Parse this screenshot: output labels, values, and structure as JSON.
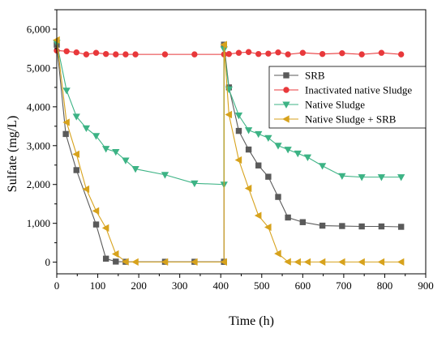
{
  "chart_data": {
    "type": "line",
    "xlabel": "Time (h)",
    "ylabel": "Sulfate (mg/L)",
    "xlim": [
      0,
      900
    ],
    "ylim": [
      -300,
      6500
    ],
    "xticks": [
      0,
      100,
      200,
      300,
      400,
      500,
      600,
      700,
      800,
      900
    ],
    "yticks": [
      0,
      1000,
      2000,
      3000,
      4000,
      5000,
      6000
    ],
    "xtick_labels": [
      "0",
      "100",
      "200",
      "300",
      "400",
      "500",
      "600",
      "700",
      "800",
      "900"
    ],
    "ytick_labels": [
      "0",
      "1,000",
      "2,000",
      "3,000",
      "4,000",
      "5,000",
      "6,000"
    ],
    "legend_position": "top-right",
    "series": [
      {
        "name": "SRB",
        "color": "#5a5a5a",
        "marker": "square",
        "x": [
          0,
          22,
          48,
          96,
          120,
          144,
          168,
          264,
          336,
          408,
          408,
          408,
          420,
          444,
          468,
          492,
          516,
          540,
          564,
          600,
          648,
          696,
          744,
          792,
          840
        ],
        "y": [
          5600,
          3300,
          2370,
          970,
          90,
          15,
          10,
          10,
          10,
          10,
          10,
          5600,
          4500,
          3380,
          2900,
          2490,
          2200,
          1680,
          1150,
          1030,
          940,
          930,
          920,
          920,
          910
        ]
      },
      {
        "name": "Inactivated native Sludge",
        "color": "#e8383b",
        "marker": "circle",
        "x": [
          0,
          24,
          48,
          72,
          96,
          120,
          144,
          168,
          192,
          264,
          336,
          408,
          420,
          444,
          468,
          492,
          516,
          540,
          564,
          600,
          648,
          696,
          744,
          792,
          840
        ],
        "y": [
          5450,
          5430,
          5400,
          5350,
          5390,
          5360,
          5350,
          5350,
          5350,
          5350,
          5350,
          5350,
          5360,
          5390,
          5410,
          5360,
          5370,
          5400,
          5350,
          5390,
          5360,
          5380,
          5350,
          5390,
          5350
        ]
      },
      {
        "name": "Native Sludge",
        "color": "#3db385",
        "marker": "triangle-down",
        "x": [
          0,
          24,
          48,
          72,
          96,
          120,
          144,
          168,
          192,
          264,
          336,
          408,
          408,
          420,
          444,
          468,
          492,
          516,
          540,
          564,
          588,
          612,
          648,
          696,
          744,
          792,
          840
        ],
        "y": [
          5650,
          4420,
          3750,
          3450,
          3250,
          2920,
          2840,
          2620,
          2400,
          2250,
          2030,
          2000,
          5480,
          4450,
          3780,
          3400,
          3300,
          3200,
          3000,
          2900,
          2800,
          2700,
          2480,
          2220,
          2190,
          2190,
          2190
        ]
      },
      {
        "name": "Native Sludge + SRB",
        "color": "#d7a21c",
        "marker": "triangle-left",
        "x": [
          0,
          24,
          48,
          72,
          96,
          120,
          144,
          168,
          192,
          264,
          336,
          408,
          408,
          420,
          444,
          468,
          492,
          516,
          540,
          564,
          588,
          612,
          648,
          696,
          744,
          792,
          840
        ],
        "y": [
          5720,
          3600,
          2780,
          1880,
          1320,
          880,
          210,
          10,
          5,
          5,
          5,
          5,
          5600,
          3800,
          2630,
          1900,
          1200,
          900,
          220,
          10,
          5,
          5,
          5,
          5,
          5,
          5,
          5
        ]
      }
    ]
  }
}
